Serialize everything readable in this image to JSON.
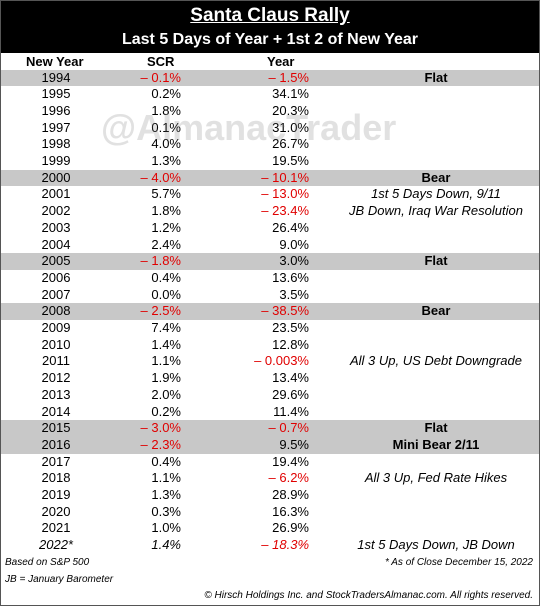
{
  "header": {
    "title": "Santa Claus Rally",
    "subtitle": "Last 5 Days of Year + 1st 2 of  New Year"
  },
  "watermark": "@AlmanacTrader",
  "table": {
    "columns": [
      "New Year",
      "SCR",
      "Year"
    ],
    "rows": [
      {
        "year": "1994",
        "scr": "– 0.1%",
        "change": "– 1.5%",
        "note": "Flat",
        "highlight": true
      },
      {
        "year": "1995",
        "scr": "0.2%",
        "change": "34.1%"
      },
      {
        "year": "1996",
        "scr": "1.8%",
        "change": "20.3%"
      },
      {
        "year": "1997",
        "scr": "0.1%",
        "change": "31.0%"
      },
      {
        "year": "1998",
        "scr": "4.0%",
        "change": "26.7%"
      },
      {
        "year": "1999",
        "scr": "1.3%",
        "change": "19.5%"
      },
      {
        "year": "2000",
        "scr": "– 4.0%",
        "change": "– 10.1%",
        "note": "Bear",
        "highlight": true
      },
      {
        "year": "2001",
        "scr": "5.7%",
        "change": "– 13.0%",
        "note": "1st 5 Days Down, 9/11"
      },
      {
        "year": "2002",
        "scr": "1.8%",
        "change": "– 23.4%",
        "note": "JB Down, Iraq War Resolution"
      },
      {
        "year": "2003",
        "scr": "1.2%",
        "change": "26.4%"
      },
      {
        "year": "2004",
        "scr": "2.4%",
        "change": "9.0%"
      },
      {
        "year": "2005",
        "scr": "– 1.8%",
        "change": "3.0%",
        "note": "Flat",
        "highlight": true
      },
      {
        "year": "2006",
        "scr": "0.4%",
        "change": "13.6%"
      },
      {
        "year": "2007",
        "scr": "0.0%",
        "change": "3.5%"
      },
      {
        "year": "2008",
        "scr": "– 2.5%",
        "change": "– 38.5%",
        "note": "Bear",
        "highlight": true
      },
      {
        "year": "2009",
        "scr": "7.4%",
        "change": "23.5%"
      },
      {
        "year": "2010",
        "scr": "1.4%",
        "change": "12.8%"
      },
      {
        "year": "2011",
        "scr": "1.1%",
        "change": "– 0.003%",
        "note": "All 3 Up, US Debt Downgrade"
      },
      {
        "year": "2012",
        "scr": "1.9%",
        "change": "13.4%"
      },
      {
        "year": "2013",
        "scr": "2.0%",
        "change": "29.6%"
      },
      {
        "year": "2014",
        "scr": "0.2%",
        "change": "11.4%"
      },
      {
        "year": "2015",
        "scr": "– 3.0%",
        "change": "– 0.7%",
        "note": "Flat",
        "highlight": true
      },
      {
        "year": "2016",
        "scr": "– 2.3%",
        "change": "9.5%",
        "note": "Mini Bear 2/11",
        "highlight": true
      },
      {
        "year": "2017",
        "scr": "0.4%",
        "change": "19.4%"
      },
      {
        "year": "2018",
        "scr": "1.1%",
        "change": "– 6.2%",
        "note": "All 3 Up, Fed Rate Hikes"
      },
      {
        "year": "2019",
        "scr": "1.3%",
        "change": "28.9%"
      },
      {
        "year": "2020",
        "scr": "0.3%",
        "change": "16.3%"
      },
      {
        "year": "2021",
        "scr": "1.0%",
        "change": "26.9%"
      },
      {
        "year": "2022*",
        "scr": "1.4%",
        "change": "– 18.3%",
        "note": "1st 5 Days Down, JB Down",
        "italic": true
      }
    ]
  },
  "footer": {
    "source": "Based on S&P 500",
    "asof": "* As of Close December 15, 2022",
    "legend": "JB = January Barometer",
    "copyright": "© Hirsch Holdings Inc. and StockTradersAlmanac.com. All rights reserved."
  }
}
